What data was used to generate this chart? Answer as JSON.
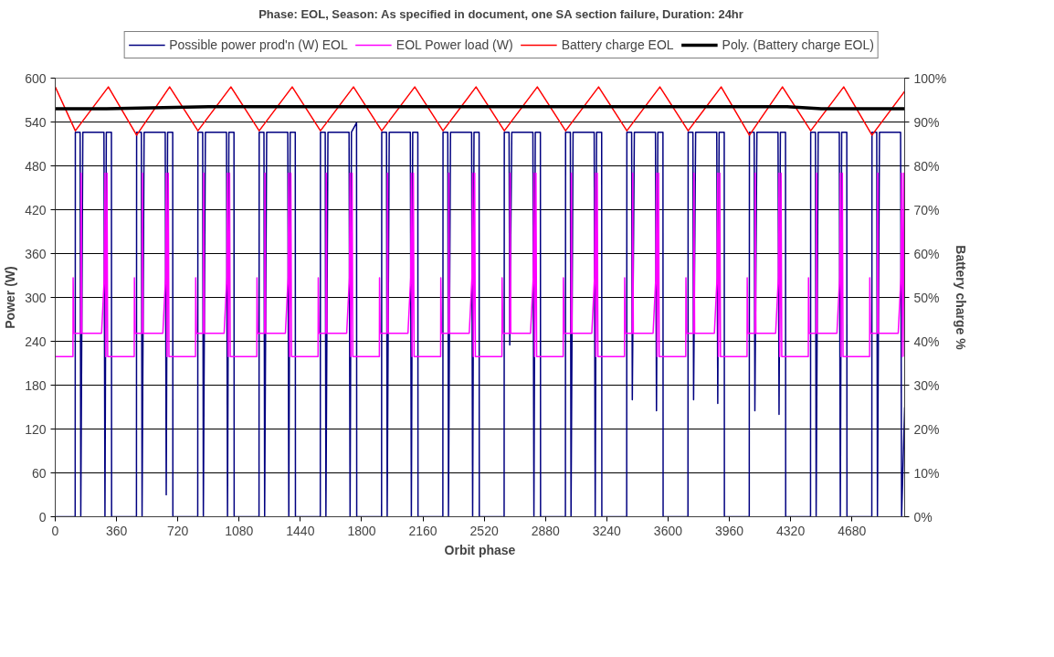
{
  "chart_data": {
    "type": "line",
    "title": "Phase: EOL, Season: As specified in document, one SA section failure, Duration: 24hr",
    "xlabel": "Orbit phase",
    "ylabel": "Power (W)",
    "y2label": "Battery charge %",
    "xlim": [
      0,
      4990
    ],
    "xticks": [
      0,
      360,
      720,
      1080,
      1440,
      1800,
      2160,
      2520,
      2880,
      3240,
      3600,
      3960,
      4320,
      4680
    ],
    "ylim": [
      0,
      600
    ],
    "yticks": [
      0,
      60,
      120,
      180,
      240,
      300,
      360,
      420,
      480,
      540,
      600
    ],
    "y2lim": [
      0,
      100
    ],
    "y2ticks": [
      {
        "value": 0,
        "label": "0%"
      },
      {
        "value": 10,
        "label": "10%"
      },
      {
        "value": 20,
        "label": "20%"
      },
      {
        "value": 30,
        "label": "30%"
      },
      {
        "value": 40,
        "label": "40%"
      },
      {
        "value": 50,
        "label": "50%"
      },
      {
        "value": 60,
        "label": "60%"
      },
      {
        "value": 70,
        "label": "70%"
      },
      {
        "value": 80,
        "label": "80%"
      },
      {
        "value": 90,
        "label": "90%"
      },
      {
        "value": 100,
        "label": "100%"
      }
    ],
    "grid": "y",
    "legend": "top",
    "marker": "none",
    "line_style": "solid",
    "series": [
      {
        "name": "Possible power prod'n (W) EOL",
        "color": "#000080",
        "x": [
          0,
          117,
          118,
          146,
          150,
          162,
          286,
          292,
          300,
          330,
          331,
          477,
          478,
          506,
          510,
          522,
          646,
          652,
          660,
          690,
          691,
          837,
          838,
          866,
          870,
          882,
          1006,
          1012,
          1020,
          1050,
          1051,
          1197,
          1198,
          1226,
          1230,
          1242,
          1366,
          1372,
          1380,
          1410,
          1411,
          1557,
          1558,
          1586,
          1590,
          1602,
          1726,
          1732,
          1740,
          1770,
          1771,
          1917,
          1918,
          1946,
          1950,
          1962,
          2086,
          2092,
          2100,
          2130,
          2131,
          2277,
          2278,
          2306,
          2310,
          2322,
          2446,
          2452,
          2460,
          2490,
          2491,
          2637,
          2638,
          2666,
          2670,
          2682,
          2806,
          2812,
          2820,
          2850,
          2851,
          2997,
          2998,
          3026,
          3030,
          3042,
          3166,
          3172,
          3180,
          3210,
          3211,
          3357,
          3358,
          3386,
          3390,
          3402,
          3526,
          3532,
          3540,
          3570,
          3571,
          3717,
          3718,
          3746,
          3750,
          3762,
          3886,
          3892,
          3900,
          3930,
          3931,
          4077,
          4078,
          4106,
          4110,
          4122,
          4246,
          4252,
          4260,
          4290,
          4291,
          4437,
          4438,
          4466,
          4470,
          4482,
          4606,
          4612,
          4620,
          4650,
          4651,
          4797,
          4798,
          4826,
          4830,
          4842,
          4966,
          4972,
          4990
        ],
        "values": [
          0,
          0,
          526,
          526,
          0,
          526,
          526,
          0,
          526,
          526,
          0,
          0,
          526,
          526,
          0,
          526,
          526,
          30,
          526,
          526,
          0,
          0,
          526,
          526,
          0,
          526,
          526,
          0,
          526,
          526,
          0,
          0,
          526,
          526,
          0,
          526,
          526,
          0,
          526,
          526,
          0,
          0,
          526,
          526,
          0,
          526,
          526,
          0,
          526,
          539,
          0,
          0,
          526,
          526,
          0,
          526,
          526,
          0,
          526,
          526,
          0,
          0,
          526,
          526,
          0,
          526,
          526,
          0,
          526,
          526,
          0,
          0,
          526,
          526,
          235,
          526,
          526,
          0,
          526,
          526,
          0,
          0,
          526,
          526,
          0,
          526,
          526,
          0,
          526,
          526,
          0,
          0,
          526,
          526,
          160,
          526,
          526,
          145,
          526,
          526,
          0,
          0,
          526,
          526,
          160,
          526,
          526,
          155,
          526,
          526,
          0,
          0,
          526,
          526,
          145,
          526,
          526,
          140,
          526,
          526,
          0,
          0,
          526,
          526,
          0,
          526,
          526,
          0,
          526,
          526,
          0,
          0,
          526,
          526,
          0,
          526,
          526,
          0,
          150
        ]
      },
      {
        "name": "EOL Power load (W)",
        "color": "#ff00ff",
        "x": [
          0,
          104,
          105,
          109,
          150,
          152,
          156,
          272,
          288,
          292,
          296,
          304,
          308,
          464,
          465,
          469,
          510,
          512,
          516,
          632,
          648,
          652,
          656,
          664,
          668,
          824,
          825,
          829,
          870,
          872,
          876,
          992,
          1008,
          1012,
          1016,
          1024,
          1028,
          1184,
          1185,
          1189,
          1230,
          1232,
          1236,
          1352,
          1368,
          1372,
          1376,
          1384,
          1388,
          1544,
          1545,
          1549,
          1590,
          1592,
          1596,
          1712,
          1728,
          1732,
          1736,
          1744,
          1748,
          1904,
          1905,
          1909,
          1950,
          1952,
          1956,
          2072,
          2088,
          2092,
          2096,
          2104,
          2108,
          2264,
          2265,
          2269,
          2310,
          2312,
          2316,
          2432,
          2448,
          2452,
          2456,
          2464,
          2468,
          2624,
          2625,
          2629,
          2670,
          2672,
          2676,
          2792,
          2808,
          2812,
          2816,
          2824,
          2828,
          2984,
          2985,
          2989,
          3030,
          3032,
          3036,
          3152,
          3168,
          3172,
          3176,
          3184,
          3188,
          3344,
          3345,
          3349,
          3390,
          3392,
          3396,
          3512,
          3528,
          3532,
          3536,
          3544,
          3548,
          3704,
          3705,
          3709,
          3750,
          3752,
          3756,
          3872,
          3888,
          3892,
          3896,
          3904,
          3908,
          4064,
          4065,
          4069,
          4110,
          4112,
          4116,
          4232,
          4248,
          4252,
          4256,
          4264,
          4268,
          4424,
          4425,
          4429,
          4470,
          4472,
          4476,
          4592,
          4608,
          4612,
          4616,
          4624,
          4628,
          4784,
          4785,
          4789,
          4830,
          4832,
          4836,
          4952,
          4968,
          4972,
          4976,
          4984,
          4988
        ],
        "values": [
          219,
          219,
          327,
          251,
          251,
          470,
          251,
          251,
          327,
          470,
          219,
          470,
          219,
          219,
          327,
          251,
          251,
          470,
          251,
          251,
          327,
          470,
          219,
          470,
          219,
          219,
          327,
          251,
          251,
          470,
          251,
          251,
          327,
          470,
          219,
          470,
          219,
          219,
          327,
          251,
          251,
          470,
          251,
          251,
          327,
          470,
          219,
          470,
          219,
          219,
          327,
          251,
          251,
          470,
          251,
          251,
          327,
          470,
          219,
          470,
          219,
          219,
          327,
          251,
          251,
          470,
          251,
          251,
          327,
          470,
          219,
          470,
          219,
          219,
          327,
          251,
          251,
          470,
          251,
          251,
          327,
          470,
          219,
          470,
          219,
          219,
          327,
          251,
          251,
          470,
          251,
          251,
          327,
          470,
          219,
          470,
          219,
          219,
          327,
          251,
          251,
          470,
          251,
          251,
          327,
          470,
          219,
          470,
          219,
          219,
          327,
          251,
          251,
          470,
          251,
          251,
          327,
          470,
          219,
          470,
          219,
          219,
          327,
          251,
          251,
          470,
          251,
          251,
          327,
          470,
          219,
          470,
          219,
          219,
          327,
          251,
          251,
          470,
          251,
          251,
          327,
          470,
          219,
          470,
          219,
          219,
          327,
          251,
          251,
          470,
          251,
          251,
          327,
          470,
          219,
          470,
          219,
          219,
          327,
          251,
          251,
          470,
          251,
          251,
          327,
          470,
          219,
          470,
          219
        ]
      },
      {
        "name": "Battery charge EOL",
        "color": "#ff0000",
        "axis": "y2",
        "x": [
          0,
          118,
          312,
          478,
          672,
          838,
          1032,
          1198,
          1392,
          1558,
          1752,
          1918,
          2112,
          2278,
          2472,
          2638,
          2832,
          2998,
          3192,
          3358,
          3552,
          3718,
          3912,
          4078,
          4272,
          4438,
          4632,
          4798,
          4990
        ],
        "values": [
          98,
          88,
          98,
          87,
          98,
          88,
          98,
          88,
          98,
          88,
          98,
          88,
          98,
          88,
          98,
          88,
          98,
          88,
          98,
          88,
          98,
          88,
          98,
          87,
          98,
          88,
          98,
          87,
          97
        ]
      },
      {
        "name": "Poly. (Battery charge EOL)",
        "color": "#000000",
        "axis": "y2",
        "x": [
          0,
          60,
          300,
          900,
          1500,
          4100,
          4300,
          4500,
          4990
        ],
        "values": [
          93,
          93,
          93,
          93.5,
          93.5,
          93.5,
          93.5,
          93,
          93
        ]
      }
    ]
  }
}
